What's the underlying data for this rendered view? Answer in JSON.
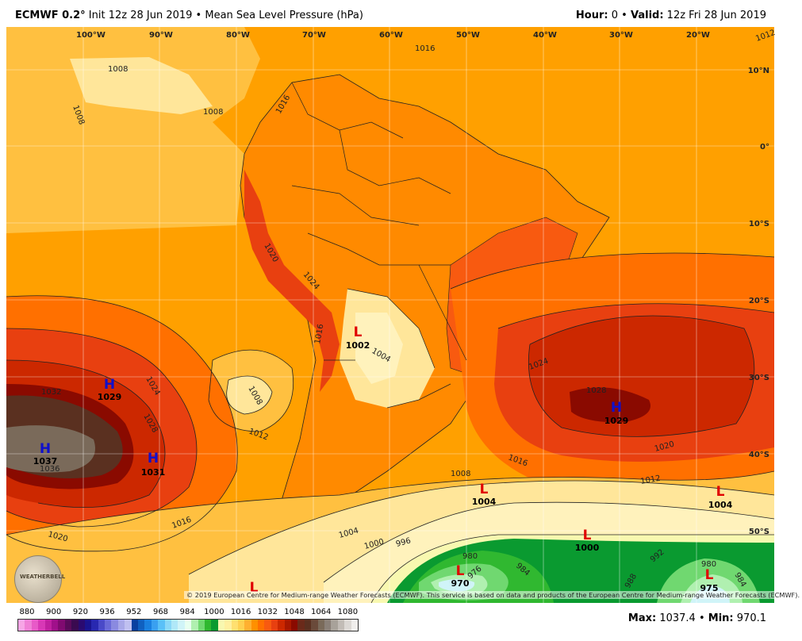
{
  "header": {
    "model": "ECMWF 0.2",
    "degree": "°",
    "init": "Init 12z 28 Jun 2019",
    "bullet": "•",
    "title": "Mean Sea Level Pressure (hPa)",
    "hour_label": "Hour:",
    "hour_value": "0",
    "valid_label": "Valid:",
    "valid_value": "12z Fri 28 Jun 2019"
  },
  "map": {
    "lon_labels": [
      "100°W",
      "90°W",
      "80°W",
      "70°W",
      "60°W",
      "50°W",
      "40°W",
      "30°W",
      "20°W"
    ],
    "lat_labels": [
      "10°N",
      "0°",
      "10°S",
      "20°S",
      "30°S",
      "40°S",
      "50°S"
    ],
    "contour_labels": [
      "1008",
      "1008",
      "1008",
      "1016",
      "1016",
      "1016",
      "1020",
      "1024",
      "1004",
      "1008",
      "1012",
      "1024",
      "1028",
      "1032",
      "1036",
      "1028",
      "1016",
      "1020",
      "1024",
      "1020",
      "1016",
      "1012",
      "1008",
      "1004",
      "1000",
      "996",
      "980",
      "976",
      "984",
      "988",
      "992",
      "980",
      "984",
      "1012"
    ],
    "centers": [
      {
        "type": "H",
        "value": "1037",
        "color": "#1010cc"
      },
      {
        "type": "H",
        "value": "1029",
        "color": "#1010cc"
      },
      {
        "type": "H",
        "value": "1031",
        "color": "#1010cc"
      },
      {
        "type": "L",
        "value": "1002",
        "color": "#e00000"
      },
      {
        "type": "H",
        "value": "1029",
        "color": "#1010cc"
      },
      {
        "type": "L",
        "value": "1004",
        "color": "#e00000"
      },
      {
        "type": "L",
        "value": "1004",
        "color": "#e00000"
      },
      {
        "type": "L",
        "value": "1000",
        "color": "#e00000"
      },
      {
        "type": "L",
        "value": "970",
        "color": "#e00000"
      },
      {
        "type": "L",
        "value": "975",
        "color": "#e00000"
      },
      {
        "type": "L",
        "value": "",
        "color": "#e00000"
      }
    ],
    "logo_text": "WEATHERBELL",
    "copyright": "© 2019 European Centre for Medium-range Weather Forecasts (ECMWF). This service is based on data and products of the European Centre for Medium-range Weather Forecasts (ECMWF)."
  },
  "colorbar": {
    "ticks": [
      "880",
      "900",
      "920",
      "936",
      "952",
      "968",
      "984",
      "1000",
      "1016",
      "1032",
      "1048",
      "1064",
      "1080"
    ],
    "colors": [
      "#f7a6e6",
      "#f080d6",
      "#e85ac8",
      "#d838b6",
      "#c020a0",
      "#a0108a",
      "#800a70",
      "#5a0a5a",
      "#3a0a50",
      "#2a0a70",
      "#1a1490",
      "#2828b0",
      "#4a4ac8",
      "#6a6ad8",
      "#8a8ae0",
      "#a8a8e8",
      "#c0c0f0",
      "#0a40a0",
      "#1060c0",
      "#1a80e0",
      "#3aa0f0",
      "#5ac0f8",
      "#8ad8f8",
      "#b0e8f8",
      "#d0f4f8",
      "#e8fff0",
      "#b0f0b0",
      "#70d870",
      "#30b830",
      "#0a9a30",
      "#f8f8b0",
      "#fff0a0",
      "#ffe070",
      "#ffd050",
      "#ffb030",
      "#ff9000",
      "#ff7000",
      "#f85a10",
      "#e84010",
      "#cc2800",
      "#a81800",
      "#8a0a00",
      "#6a2a1a",
      "#5a3020",
      "#6a4a3a",
      "#7a6a5a",
      "#8a8078",
      "#a8a29a",
      "#c2bcb6",
      "#dcd8d4",
      "#f0eeec"
    ],
    "max_label": "Max:",
    "max_value": "1037.4",
    "min_label": "Min:",
    "min_value": "970.1"
  }
}
